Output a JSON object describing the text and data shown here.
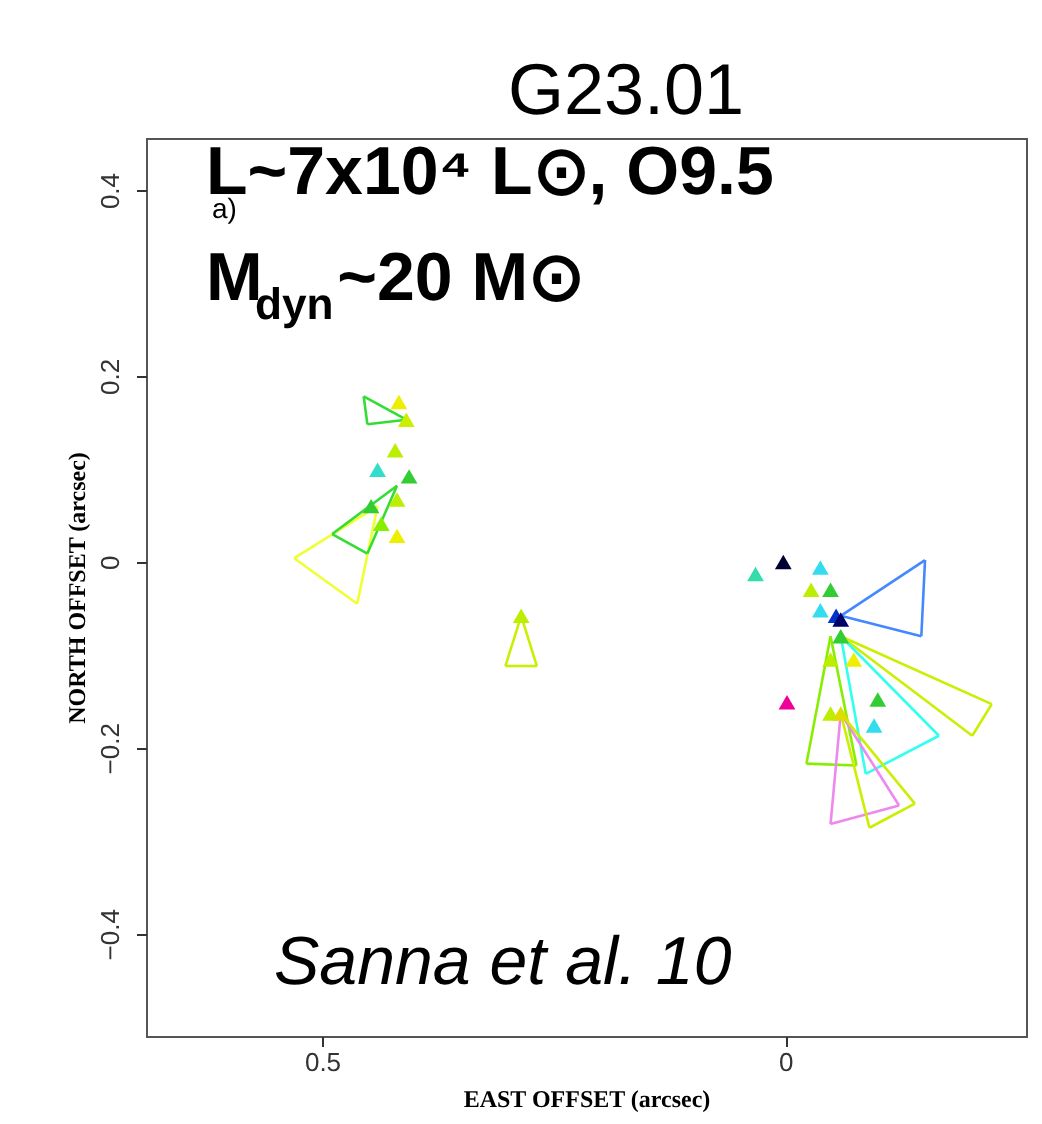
{
  "chart_data": {
    "type": "scatter",
    "title": "G23.01",
    "xlabel": "EAST OFFSET (arcsec)",
    "ylabel": "NORTH OFFSET (arcsec)",
    "annotations": [
      "L~7x10⁴ L⊙, O9.5",
      "M$_{dyn}$~20 M⊙",
      "a)",
      "Sanna et al. 10"
    ],
    "xlim": [
      0.69,
      -0.26
    ],
    "ylim": [
      -0.51,
      0.456
    ],
    "xticks": [
      0.5,
      {
        "value": 0,
        "label": "0"
      }
    ],
    "yticks": [
      -0.4,
      -0.2,
      {
        "value": 0,
        "label": "0"
      },
      0.2,
      0.4
    ],
    "grid": false,
    "series": [
      {
        "type": "line",
        "color": "#eeff33",
        "x": [
          0.44,
          0.53
        ],
        "values": [
          0.06,
          0.004
        ]
      },
      {
        "type": "line",
        "color": "#eeff33",
        "x": [
          0.44,
          0.462
        ],
        "values": [
          0.06,
          -0.045
        ]
      },
      {
        "type": "line",
        "color": "#eeff33",
        "x": [
          0.53,
          0.462
        ],
        "values": [
          0.004,
          -0.045
        ]
      },
      {
        "type": "line",
        "color": "#ccee00",
        "x": [
          0.285,
          0.302
        ],
        "values": [
          -0.058,
          -0.112
        ]
      },
      {
        "type": "line",
        "color": "#ccee00",
        "x": [
          0.285,
          0.268
        ],
        "values": [
          -0.058,
          -0.112
        ]
      },
      {
        "type": "line",
        "color": "#ccee00",
        "x": [
          0.302,
          0.268
        ],
        "values": [
          -0.112,
          -0.112
        ]
      },
      {
        "type": "line",
        "color": "#33dd33",
        "x": [
          0.419,
          0.489
        ],
        "values": [
          0.082,
          0.03
        ]
      },
      {
        "type": "line",
        "color": "#33dd33",
        "x": [
          0.419,
          0.451
        ],
        "values": [
          0.082,
          0.009
        ]
      },
      {
        "type": "line",
        "color": "#33dd33",
        "x": [
          0.489,
          0.451
        ],
        "values": [
          0.03,
          0.009
        ]
      },
      {
        "type": "line",
        "color": "#33dd33",
        "x": [
          0.409,
          0.455
        ],
        "values": [
          0.153,
          0.178
        ]
      },
      {
        "type": "line",
        "color": "#33dd33",
        "x": [
          0.409,
          0.451
        ],
        "values": [
          0.153,
          0.148
        ]
      },
      {
        "type": "line",
        "color": "#33dd33",
        "x": [
          0.455,
          0.451
        ],
        "values": [
          0.178,
          0.148
        ]
      },
      {
        "type": "line",
        "color": "#4488ff",
        "x": [
          -0.06,
          -0.151
        ],
        "values": [
          -0.058,
          0.002
        ]
      },
      {
        "type": "line",
        "color": "#4488ff",
        "x": [
          -0.06,
          -0.147
        ],
        "values": [
          -0.058,
          -0.08
        ]
      },
      {
        "type": "line",
        "color": "#4488ff",
        "x": [
          -0.151,
          -0.147
        ],
        "values": [
          0.002,
          -0.08
        ]
      },
      {
        "type": "line",
        "color": "#ccee00",
        "x": [
          -0.06,
          -0.223
        ],
        "values": [
          -0.08,
          -0.153
        ]
      },
      {
        "type": "line",
        "color": "#ccee00",
        "x": [
          -0.06,
          -0.202
        ],
        "values": [
          -0.08,
          -0.187
        ]
      },
      {
        "type": "line",
        "color": "#ccee00",
        "x": [
          -0.223,
          -0.202
        ],
        "values": [
          -0.153,
          -0.187
        ]
      },
      {
        "type": "line",
        "color": "#33ffee",
        "x": [
          -0.06,
          -0.166
        ],
        "values": [
          -0.08,
          -0.187
        ]
      },
      {
        "type": "line",
        "color": "#33ffee",
        "x": [
          -0.06,
          -0.087
        ],
        "values": [
          -0.08,
          -0.228
        ]
      },
      {
        "type": "line",
        "color": "#33ffee",
        "x": [
          -0.166,
          -0.087
        ],
        "values": [
          -0.187,
          -0.228
        ]
      },
      {
        "type": "line",
        "color": "#88ee00",
        "x": [
          -0.049,
          -0.023
        ],
        "values": [
          -0.08,
          -0.217
        ]
      },
      {
        "type": "line",
        "color": "#88ee00",
        "x": [
          -0.049,
          -0.077
        ],
        "values": [
          -0.08,
          -0.219
        ]
      },
      {
        "type": "line",
        "color": "#88ee00",
        "x": [
          -0.023,
          -0.077
        ],
        "values": [
          -0.217,
          -0.219
        ]
      },
      {
        "type": "line",
        "color": "#ee88ee",
        "x": [
          -0.06,
          -0.049
        ],
        "values": [
          -0.163,
          -0.282
        ]
      },
      {
        "type": "line",
        "color": "#ee88ee",
        "x": [
          -0.06,
          -0.123
        ],
        "values": [
          -0.163,
          -0.262
        ]
      },
      {
        "type": "line",
        "color": "#ee88ee",
        "x": [
          -0.049,
          -0.123
        ],
        "values": [
          -0.282,
          -0.262
        ]
      },
      {
        "type": "line",
        "color": "#ccee00",
        "x": [
          -0.06,
          -0.091
        ],
        "values": [
          -0.163,
          -0.286
        ]
      },
      {
        "type": "line",
        "color": "#ccee00",
        "x": [
          -0.06,
          -0.14
        ],
        "values": [
          -0.163,
          -0.26
        ]
      },
      {
        "type": "line",
        "color": "#ccee00",
        "x": [
          -0.091,
          -0.14
        ],
        "values": [
          -0.286,
          -0.26
        ]
      },
      {
        "marker": "triangle",
        "x": [
          0.417,
          0.409,
          0.421,
          0.406,
          0.44,
          0.419,
          0.447,
          0.436,
          0.419,
          0.285,
          0.032,
          0.002,
          -0.038,
          -0.028,
          -0.049,
          -0.038,
          -0.055,
          -0.06,
          -0.06,
          -0.049,
          -0.074,
          -0.002,
          -0.1,
          -0.049,
          -0.06,
          -0.096
        ],
        "values": [
          0.172,
          0.153,
          0.12,
          0.092,
          0.099,
          0.067,
          0.06,
          0.041,
          0.028,
          -0.058,
          -0.013,
          0.0,
          -0.006,
          -0.03,
          -0.03,
          -0.052,
          -0.058,
          -0.062,
          -0.08,
          -0.105,
          -0.105,
          -0.151,
          -0.148,
          -0.163,
          -0.163,
          -0.176
        ],
        "colors": [
          "#eeee00",
          "#ccee00",
          "#bbee00",
          "#33cc33",
          "#33ddcc",
          "#bbee00",
          "#33cc33",
          "#88ee00",
          "#eeee00",
          "#bbee00",
          "#33ddaa",
          "#000033",
          "#33ddee",
          "#bbee00",
          "#33cc33",
          "#33ddee",
          "#0033cc",
          "#000066",
          "#33cc33",
          "#bbee00",
          "#eeee00",
          "#ee0099",
          "#33cc33",
          "#bbee00",
          "#dddd00",
          "#33ddee"
        ]
      }
    ]
  }
}
